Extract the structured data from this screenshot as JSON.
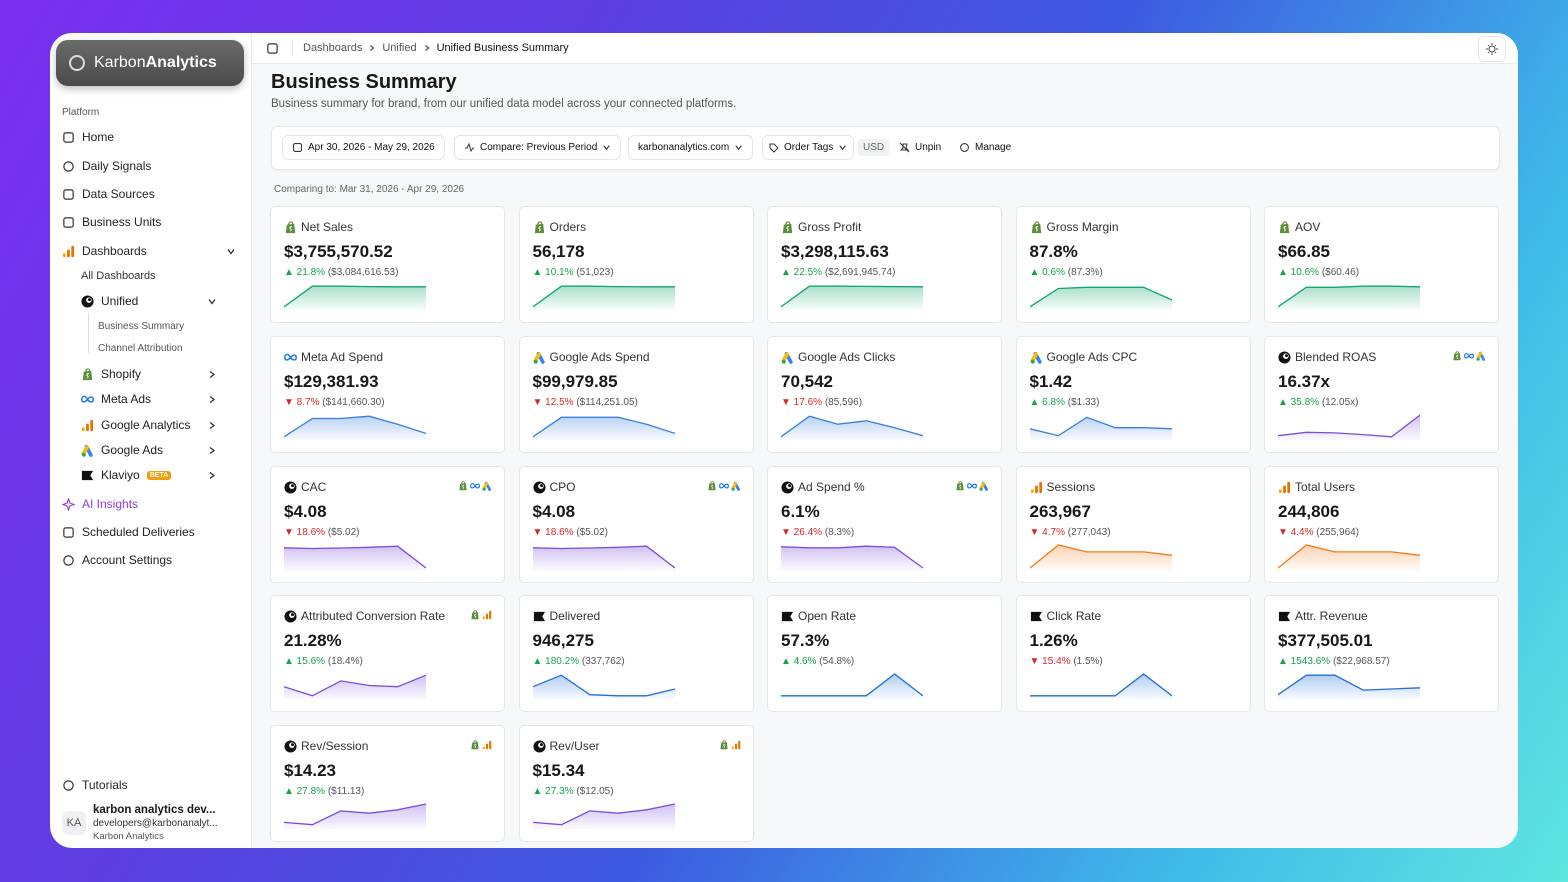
{
  "brand": {
    "name1": "Karbon",
    "name2": "Analytics"
  },
  "sidebar": {
    "section": "Platform",
    "nav": [
      "Home",
      "Daily Signals",
      "Data Sources",
      "Business Units",
      "Dashboards"
    ],
    "sub": [
      "All Dashboards",
      "Unified"
    ],
    "subsub": [
      "Business Summary",
      "Channel Attribution"
    ],
    "integrations": [
      "Shopify",
      "Meta Ads",
      "Google Analytics",
      "Google Ads",
      "Klaviyo"
    ],
    "badge": "BETA",
    "bottom_nav": [
      "AI Insights",
      "Scheduled Deliveries",
      "Account Settings"
    ],
    "tutorials": "Tutorials",
    "user": {
      "initials": "KA",
      "name": "karbon analytics dev...",
      "email": "developers@karbonanalyt...",
      "org": "Karbon Analytics"
    }
  },
  "breadcrumb": [
    "Dashboards",
    "Unified",
    "Unified Business Summary"
  ],
  "header": {
    "title": "Business Summary",
    "subtitle": "Business summary for brand, from our unified data model across your connected platforms."
  },
  "filters": {
    "date": "Apr 30, 2026 - May 29, 2026",
    "compare": "Compare: Previous Period",
    "domain": "karbonanalytics.com",
    "tags": "Order Tags",
    "currency": "USD",
    "unpin": "Unpin",
    "manage": "Manage"
  },
  "comparing": "Comparing to: Mar 31, 2026 - Apr 29, 2026",
  "cards": [
    {
      "name": "Net Sales",
      "value": "$3,755,570.52",
      "change": "▲ 21.8%",
      "previous": "($3,084,616.53)",
      "color": "#10a66e",
      "trend": [
        5,
        95,
        95,
        93,
        92,
        92
      ]
    },
    {
      "name": "Orders",
      "value": "56,178",
      "change": "▲ 10.1%",
      "previous": "(51,023)",
      "color": "#10a66e",
      "trend": [
        5,
        95,
        95,
        93,
        92,
        92
      ]
    },
    {
      "name": "Gross Profit",
      "value": "$3,298,115.63",
      "change": "▲ 22.5%",
      "previous": "($2,691,945.74)",
      "color": "#10a66e",
      "trend": [
        5,
        95,
        95,
        94,
        93,
        92
      ]
    },
    {
      "name": "Gross Margin",
      "value": "87.8%",
      "change": "▲ 0.6%",
      "previous": "(87.3%)",
      "color": "#10a66e",
      "trend": [
        5,
        85,
        90,
        90,
        90,
        35
      ]
    },
    {
      "name": "AOV",
      "value": "$66.85",
      "change": "▲ 10.6%",
      "previous": "($60.46)",
      "color": "#10a66e",
      "trend": [
        5,
        90,
        90,
        95,
        95,
        92
      ]
    },
    {
      "name": "Meta Ad Spend",
      "value": "$129,381.93",
      "change": "▼ 8.7%",
      "previous": "($141,660.30)",
      "color": "#3b7ddd",
      "trend": [
        5,
        85,
        85,
        95,
        60,
        20
      ]
    },
    {
      "name": "Google Ads Spend",
      "value": "$99,979.85",
      "change": "▼ 12.5%",
      "previous": "($114,251.05)",
      "color": "#3b7ddd",
      "trend": [
        5,
        90,
        90,
        90,
        60,
        20
      ]
    },
    {
      "name": "Google Ads Clicks",
      "value": "70,542",
      "change": "▼ 17.6%",
      "previous": "(85,596)",
      "color": "#3b7ddd",
      "trend": [
        5,
        95,
        60,
        75,
        45,
        10
      ]
    },
    {
      "name": "Google Ads CPC",
      "value": "$1.42",
      "change": "▲ 6.8%",
      "previous": "($1.33)",
      "color": "#3b7ddd",
      "trend": [
        40,
        10,
        90,
        45,
        45,
        40
      ]
    },
    {
      "name": "Blended ROAS",
      "value": "16.37x",
      "change": "▲ 35.8%",
      "previous": "(12.05x)",
      "color": "#7c4ddb",
      "trend": [
        10,
        25,
        22,
        15,
        5,
        100
      ]
    },
    {
      "name": "CAC",
      "value": "$4.08",
      "change": "▼ 18.6%",
      "previous": "($5.02)",
      "color": "#7c4ddb",
      "trend": [
        88,
        85,
        87,
        90,
        95,
        0
      ]
    },
    {
      "name": "CPO",
      "value": "$4.08",
      "change": "▼ 18.6%",
      "previous": "($5.02)",
      "color": "#7c4ddb",
      "trend": [
        88,
        85,
        87,
        90,
        95,
        0
      ]
    },
    {
      "name": "Ad Spend %",
      "value": "6.1%",
      "change": "▼ 26.4%",
      "previous": "(8.3%)",
      "color": "#7c4ddb",
      "trend": [
        92,
        88,
        88,
        95,
        90,
        0
      ]
    },
    {
      "name": "Sessions",
      "value": "263,967",
      "change": "▼ 4.7%",
      "previous": "(277,043)",
      "color": "#f27a1a",
      "trend": [
        0,
        100,
        70,
        70,
        70,
        55
      ]
    },
    {
      "name": "Total Users",
      "value": "244,806",
      "change": "▼ 4.4%",
      "previous": "(255,964)",
      "color": "#f27a1a",
      "trend": [
        0,
        100,
        70,
        70,
        70,
        55
      ]
    },
    {
      "name": "Attributed Conversion Rate",
      "value": "21.28%",
      "change": "▲ 15.6%",
      "previous": "(18.4%)",
      "color": "#7c4ddb",
      "trend": [
        45,
        5,
        70,
        50,
        45,
        95
      ]
    },
    {
      "name": "Delivered",
      "value": "946,275",
      "change": "▲ 180.2%",
      "previous": "(337,762)",
      "color": "#1f6fd6",
      "trend": [
        45,
        95,
        10,
        5,
        5,
        35
      ]
    },
    {
      "name": "Open Rate",
      "value": "57.3%",
      "change": "▲ 4.6%",
      "previous": "(54.8%)",
      "color": "#1f6fd6",
      "trend": [
        5,
        5,
        5,
        5,
        100,
        5
      ]
    },
    {
      "name": "Click Rate",
      "value": "1.26%",
      "change": "▼ 15.4%",
      "previous": "(1.5%)",
      "color": "#1f6fd6",
      "trend": [
        5,
        5,
        5,
        5,
        100,
        5
      ]
    },
    {
      "name": "Attr. Revenue",
      "value": "$377,505.01",
      "change": "▲ 1543.6%",
      "previous": "($22,968.57)",
      "color": "#1f6fd6",
      "trend": [
        10,
        95,
        95,
        30,
        35,
        40
      ]
    },
    {
      "name": "Rev/Session",
      "value": "$14.23",
      "change": "▲ 27.8%",
      "previous": "($11.13)",
      "color": "#7c4ddb",
      "trend": [
        20,
        10,
        70,
        60,
        75,
        100
      ]
    },
    {
      "name": "Rev/User",
      "value": "$15.34",
      "change": "▲ 27.3%",
      "previous": "($12.05)",
      "color": "#7c4ddb",
      "trend": [
        20,
        10,
        70,
        60,
        75,
        100
      ]
    }
  ]
}
